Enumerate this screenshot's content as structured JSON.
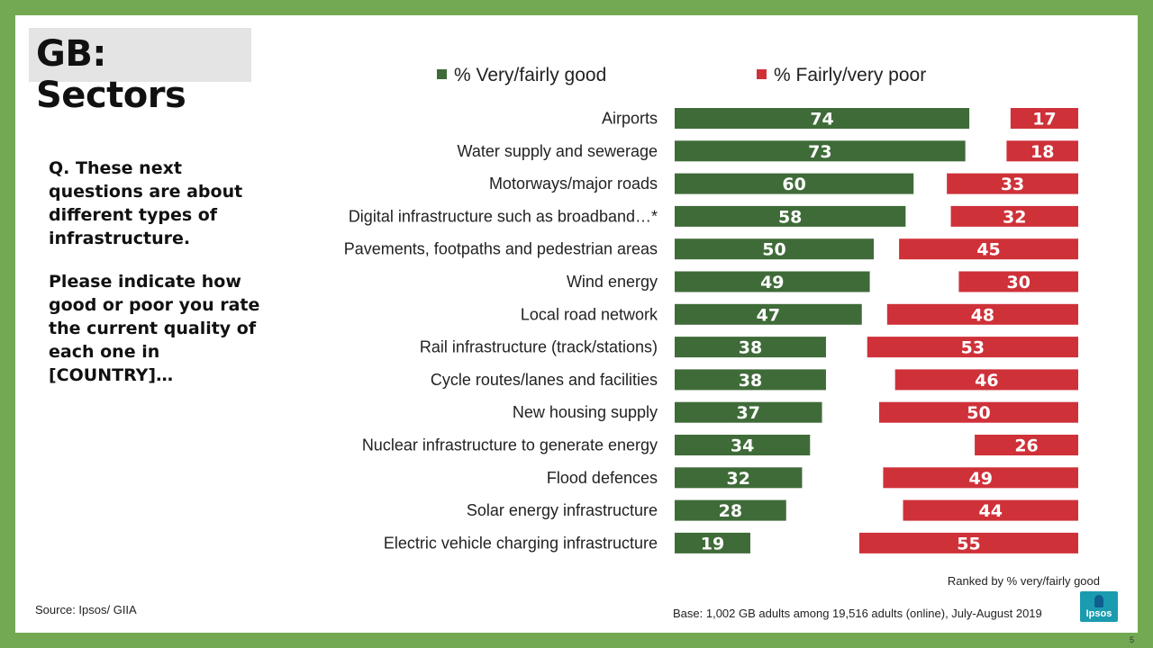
{
  "title": "GB: Sectors",
  "question": {
    "line1": "Q. These next questions are about different types of infrastructure.",
    "line2": "Please indicate how good or poor you rate the current quality of each one in [COUNTRY]…"
  },
  "footer": {
    "ranked": "Ranked by % very/fairly good",
    "source": "Source: Ipsos/ GIIA",
    "base": "Base: 1,002 GB adults among 19,516 adults (online), July-August 2019",
    "logo": "Ipsos",
    "page": "5"
  },
  "colors": {
    "good": "#3f6b38",
    "poor": "#cf3139"
  },
  "chart_data": {
    "type": "bar",
    "orientation": "horizontal",
    "categories": [
      "Airports",
      "Water supply and sewerage",
      "Motorways/major roads",
      "Digital infrastructure such as broadband…*",
      "Pavements, footpaths and pedestrian areas",
      "Wind energy",
      "Local road network",
      "Rail infrastructure (track/stations)",
      "Cycle routes/lanes and facilities",
      "New housing supply",
      "Nuclear infrastructure to generate energy",
      "Flood defences",
      "Solar energy infrastructure",
      "Electric vehicle charging infrastructure"
    ],
    "series": [
      {
        "name": "% Very/fairly good",
        "values": [
          74,
          73,
          60,
          58,
          50,
          49,
          47,
          38,
          38,
          37,
          34,
          32,
          28,
          19
        ]
      },
      {
        "name": "% Fairly/very poor",
        "values": [
          17,
          18,
          33,
          32,
          45,
          30,
          48,
          53,
          46,
          50,
          26,
          49,
          44,
          55
        ]
      }
    ]
  }
}
